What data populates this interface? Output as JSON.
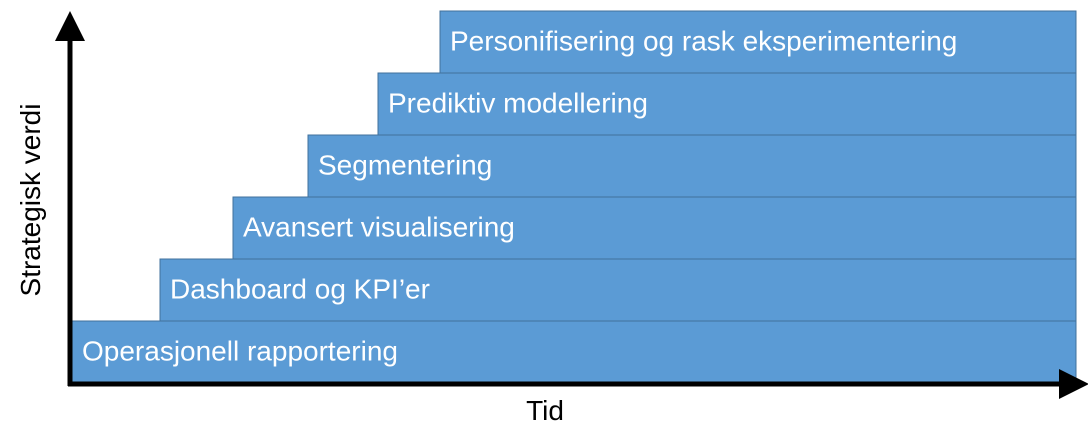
{
  "axes": {
    "y_label": "Strategisk verdi",
    "x_label": "Tid"
  },
  "steps": [
    {
      "label": "Operasjonell rapportering"
    },
    {
      "label": "Dashboard og KPI’er"
    },
    {
      "label": "Avansert visualisering"
    },
    {
      "label": "Segmentering"
    },
    {
      "label": "Prediktiv modellering"
    },
    {
      "label": "Personifisering og rask eksperimentering"
    }
  ]
}
